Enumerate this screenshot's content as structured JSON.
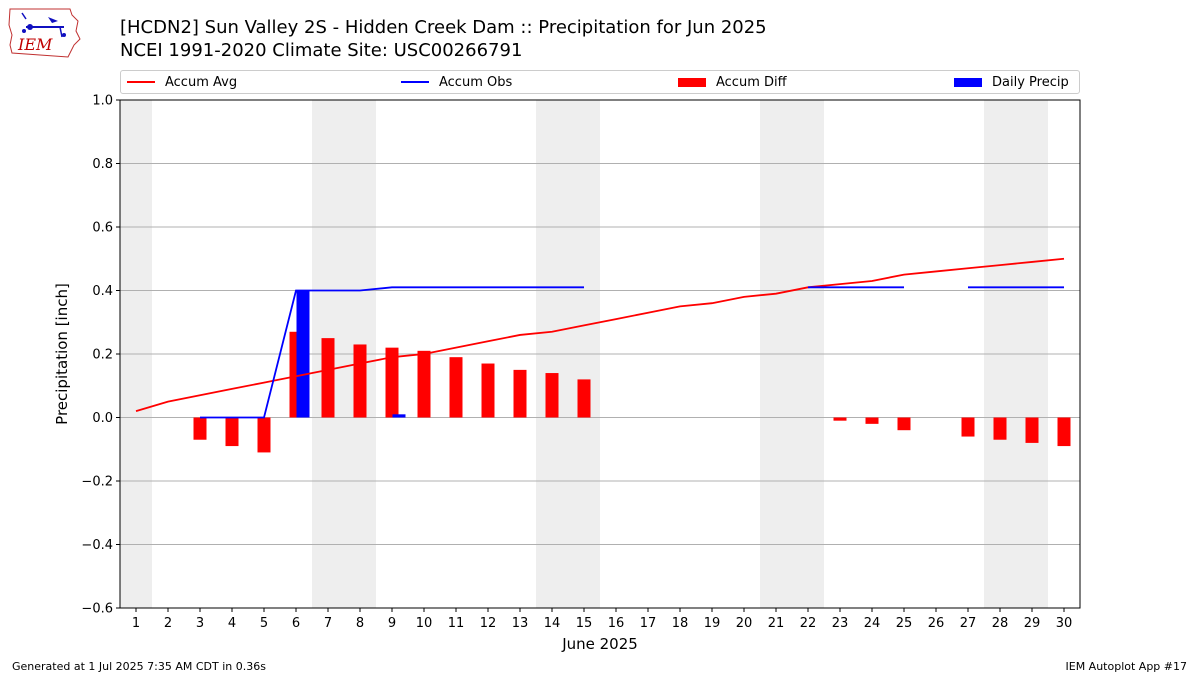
{
  "header": {
    "logo_text": "IEM",
    "title_line1": "[HCDN2] Sun Valley 2S - Hidden Creek Dam :: Precipitation for Jun 2025",
    "title_line2": "NCEI 1991-2020 Climate Site: USC00266791"
  },
  "footer": {
    "left": "Generated at 1 Jul 2025 7:35 AM CDT in 0.36s",
    "right": "IEM Autoplot App #17"
  },
  "colors": {
    "avg": "#ff0000",
    "obs": "#0000ff",
    "diff": "#ff0000",
    "daily": "#0000ff",
    "weekend_shade": "#eeeeee",
    "grid": "#b0b0b0"
  },
  "chart_data": {
    "type": "bar",
    "xlabel": "June 2025",
    "ylabel": "Precipitation [inch]",
    "ylim": [
      -0.6,
      1.0
    ],
    "yticks": [
      "−0.6",
      "−0.4",
      "−0.2",
      "0.0",
      "0.2",
      "0.4",
      "0.6",
      "0.8",
      "1.0"
    ],
    "xlim": [
      1,
      30
    ],
    "x": [
      1,
      2,
      3,
      4,
      5,
      6,
      7,
      8,
      9,
      10,
      11,
      12,
      13,
      14,
      15,
      16,
      17,
      18,
      19,
      20,
      21,
      22,
      23,
      24,
      25,
      26,
      27,
      28,
      29,
      30
    ],
    "grid": "horizontal",
    "legend_placement": "top",
    "shaded_days": [
      1,
      7,
      8,
      14,
      15,
      21,
      22,
      28,
      29
    ],
    "legend": [
      "Accum Avg",
      "Accum Obs",
      "Accum Diff",
      "Daily Precip"
    ],
    "series": [
      {
        "name": "Accum Avg",
        "kind": "line",
        "values": [
          0.02,
          0.05,
          0.07,
          0.09,
          0.11,
          0.13,
          0.15,
          0.17,
          0.19,
          0.2,
          0.22,
          0.24,
          0.26,
          0.27,
          0.29,
          0.31,
          0.33,
          0.35,
          0.36,
          0.38,
          0.39,
          0.41,
          0.42,
          0.43,
          0.45,
          0.46,
          0.47,
          0.48,
          0.49,
          0.5
        ]
      },
      {
        "name": "Accum Obs",
        "kind": "line",
        "values": [
          null,
          null,
          0.0,
          0.0,
          0.0,
          0.4,
          0.4,
          0.4,
          0.41,
          0.41,
          0.41,
          0.41,
          0.41,
          0.41,
          0.41,
          null,
          null,
          null,
          null,
          null,
          null,
          0.41,
          0.41,
          0.41,
          0.41,
          null,
          0.41,
          0.41,
          0.41,
          0.41
        ]
      },
      {
        "name": "Accum Diff",
        "kind": "bar",
        "values": [
          null,
          null,
          -0.07,
          -0.09,
          -0.11,
          0.27,
          0.25,
          0.23,
          0.22,
          0.21,
          0.19,
          0.17,
          0.15,
          0.14,
          0.12,
          null,
          null,
          null,
          null,
          null,
          null,
          null,
          -0.01,
          -0.02,
          -0.04,
          null,
          -0.06,
          -0.07,
          -0.08,
          -0.09
        ]
      },
      {
        "name": "Daily Precip",
        "kind": "bar",
        "values": [
          null,
          null,
          0.0,
          0.0,
          0.0,
          0.4,
          0.0,
          0.0,
          0.01,
          0.0,
          0.0,
          0.0,
          0.0,
          0.0,
          0.0,
          null,
          null,
          null,
          null,
          null,
          null,
          0.0,
          0.0,
          0.0,
          0.0,
          null,
          0.0,
          0.0,
          0.0,
          0.0
        ]
      }
    ]
  }
}
